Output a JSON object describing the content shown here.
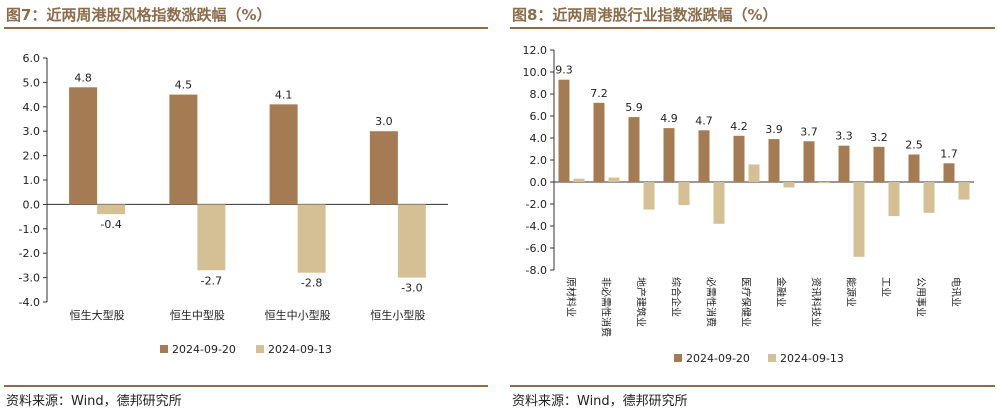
{
  "figure_left": {
    "title": "图7：近两周港股风格指数涨跌幅（%）",
    "source": "资料来源：Wind，德邦研究所"
  },
  "figure_right": {
    "title": "图8：近两周港股行业指数涨跌幅（%）",
    "source": "资料来源：Wind，德邦研究所"
  },
  "colors": {
    "series1": "#a47b52",
    "series2": "#d5c095",
    "accent": "#8b6d4a"
  },
  "chart_data": [
    {
      "type": "bar",
      "categories": [
        "恒生大型股",
        "恒生中型股",
        "恒生中小型股",
        "恒生小型股"
      ],
      "series": [
        {
          "name": "2024-09-20",
          "values": [
            4.8,
            4.5,
            4.1,
            3.0
          ]
        },
        {
          "name": "2024-09-13",
          "values": [
            -0.4,
            -2.7,
            -2.8,
            -3.0
          ]
        }
      ],
      "data_labels": [
        [
          "4.8",
          "4.5",
          "4.1",
          "3.0"
        ],
        [
          "-0.4",
          "-2.7",
          "-2.8",
          "-3.0"
        ]
      ],
      "ylim": [
        -4.0,
        6.0
      ],
      "yticks": [
        "6.0",
        "5.0",
        "4.0",
        "3.0",
        "2.0",
        "1.0",
        "0.0",
        "-1.0",
        "-2.0",
        "-3.0",
        "-4.0"
      ],
      "grid": false,
      "legend_position": "bottom"
    },
    {
      "type": "bar",
      "categories": [
        "原材料业",
        "非必需性消费",
        "地产建筑业",
        "综合企业",
        "必需性消费",
        "医疗保健业",
        "金融业",
        "资讯科技业",
        "能源业",
        "工业",
        "公用事业",
        "电讯业"
      ],
      "series": [
        {
          "name": "2024-09-20",
          "values": [
            9.3,
            7.2,
            5.9,
            4.9,
            4.7,
            4.2,
            3.9,
            3.7,
            3.3,
            3.2,
            2.5,
            1.7
          ]
        },
        {
          "name": "2024-09-13",
          "values": [
            0.3,
            0.4,
            -2.5,
            -2.1,
            -3.8,
            1.6,
            -0.5,
            -0.1,
            -6.8,
            -3.1,
            -2.8,
            -1.6
          ]
        }
      ],
      "data_labels": [
        [
          "9.3",
          "7.2",
          "5.9",
          "4.9",
          "4.7",
          "4.2",
          "3.9",
          "3.7",
          "3.3",
          "3.2",
          "2.5",
          "1.7"
        ]
      ],
      "ylim": [
        -8.0,
        12.0
      ],
      "yticks": [
        "12.0",
        "10.0",
        "8.0",
        "6.0",
        "4.0",
        "2.0",
        "0.0",
        "-2.0",
        "-4.0",
        "-6.0",
        "-8.0"
      ],
      "grid": false,
      "legend_position": "bottom"
    }
  ]
}
